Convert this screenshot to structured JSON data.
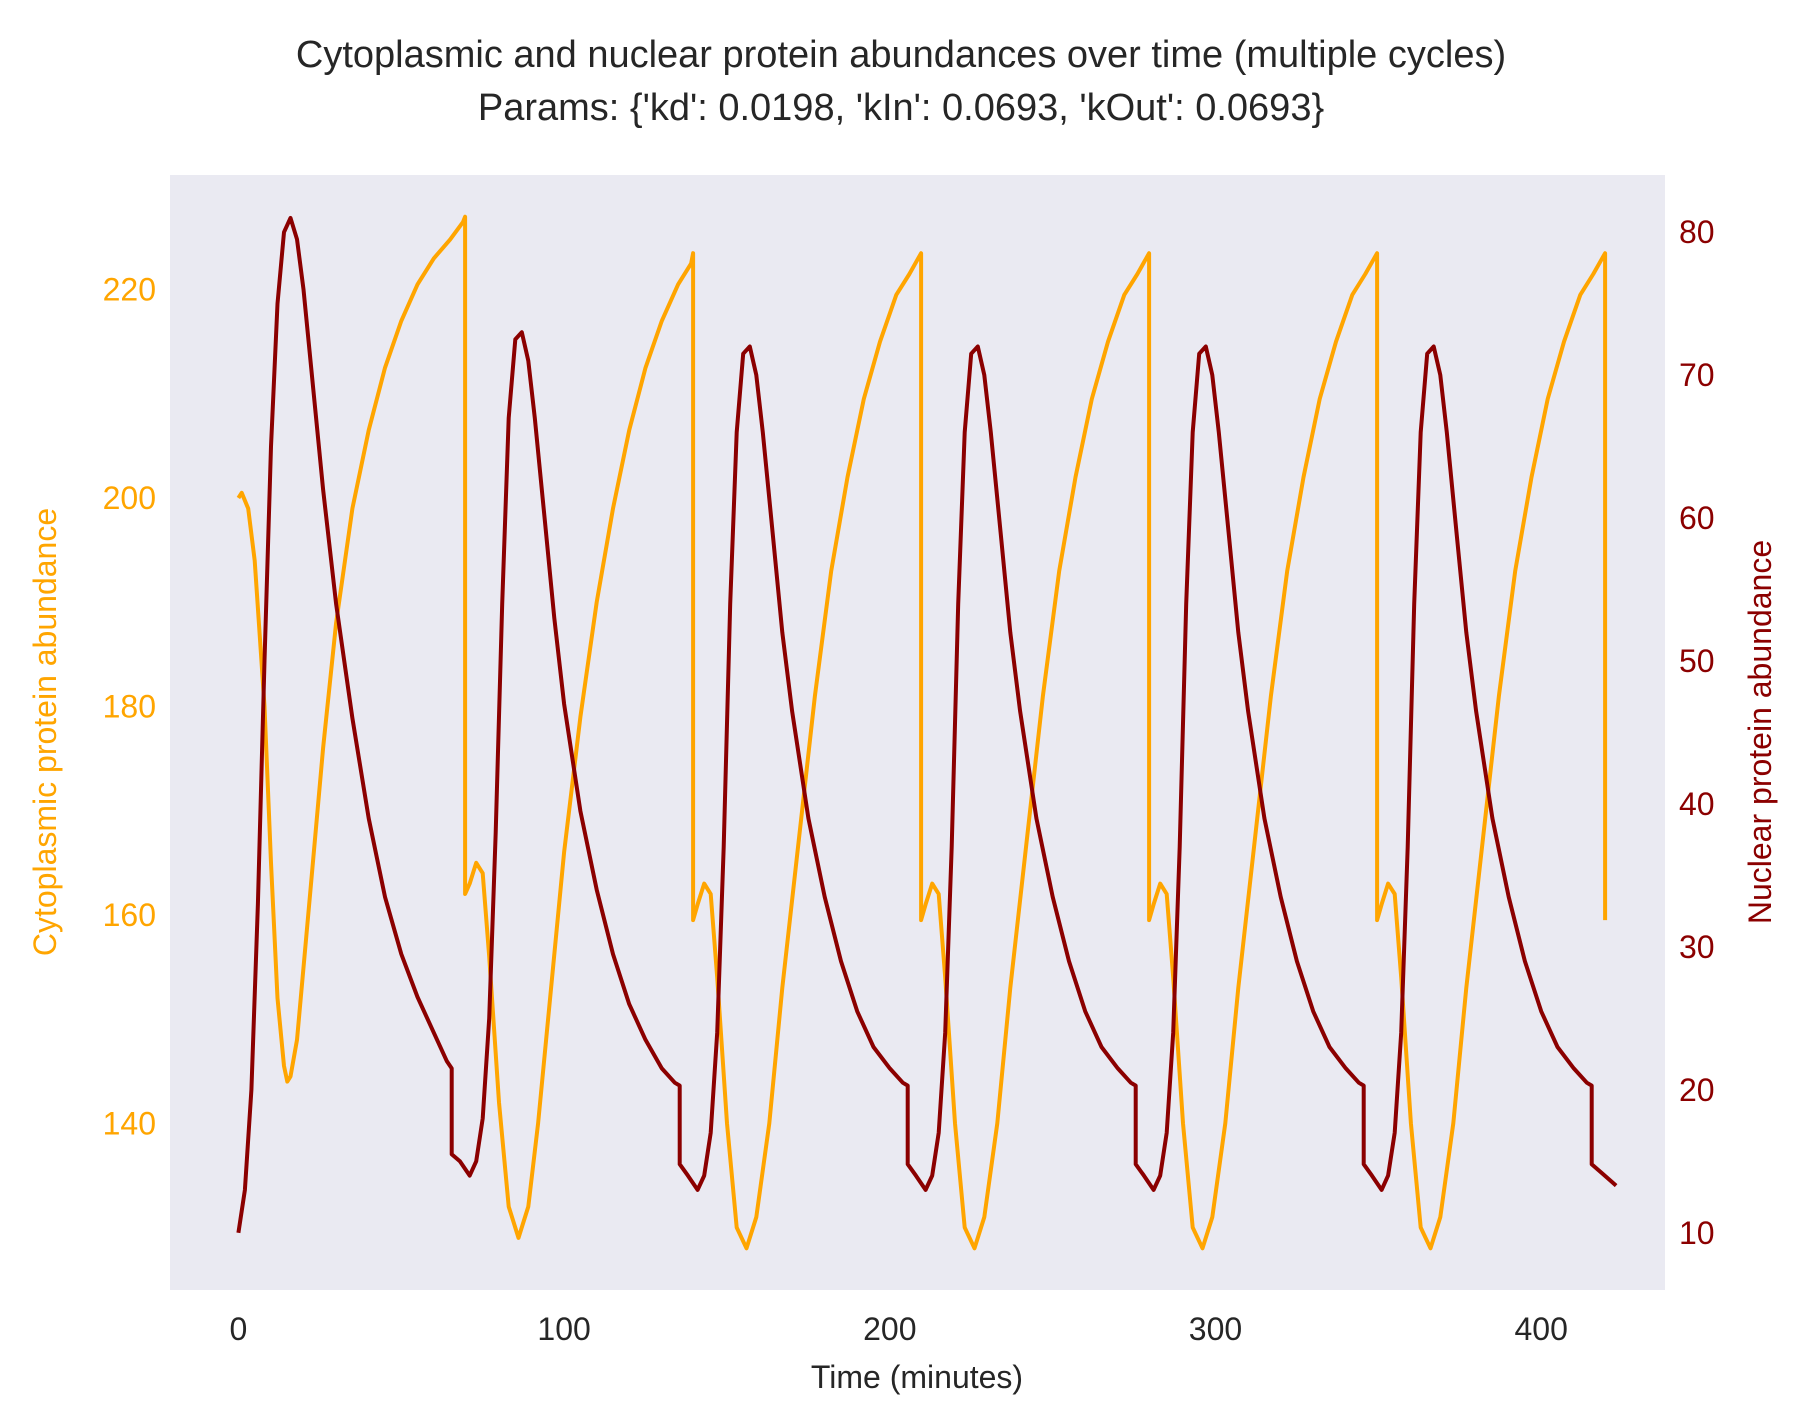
{
  "chart_data": {
    "type": "line",
    "title": "Cytoplasmic and nuclear protein abundances over time (multiple cycles)",
    "subtitle": "Params: {'kd': 0.0198, 'kIn': 0.0693, 'kOut': 0.0693}",
    "xlabel": "Time (minutes)",
    "ylabel_left": "Cytoplasmic protein abundance",
    "ylabel_right": "Nuclear protein abundance",
    "xlim": [
      -21,
      438
    ],
    "ylim_left": [
      124,
      231
    ],
    "ylim_right": [
      6,
      84
    ],
    "x_ticks": [
      0,
      100,
      200,
      300,
      400
    ],
    "y_ticks_left": [
      140,
      160,
      180,
      200,
      220
    ],
    "y_ticks_right": [
      10,
      20,
      30,
      40,
      50,
      60,
      70,
      80
    ],
    "grid": false,
    "background": "#eaeaf2",
    "colors": {
      "cytoplasmic": "#ffa500",
      "nuclear": "#8b0000",
      "text": "#262626"
    },
    "series": [
      {
        "name": "Cytoplasmic protein abundance",
        "axis": "left",
        "color": "#ffa500",
        "x": [
          0,
          1,
          3,
          5,
          8,
          10,
          12,
          14,
          15,
          16,
          18,
          22,
          26,
          30,
          35,
          40,
          45,
          50,
          55,
          60,
          65,
          69,
          69.6,
          69.6,
          71,
          73,
          75,
          77,
          80,
          83,
          86,
          89,
          92,
          96,
          100,
          105,
          110,
          115,
          120,
          125,
          130,
          135,
          139,
          139.6,
          139.6,
          141,
          143,
          145,
          147,
          150,
          153,
          156,
          159,
          163,
          167,
          172,
          177,
          182,
          187,
          192,
          197,
          202,
          206,
          209.6,
          209.6,
          211,
          213,
          215,
          217,
          220,
          223,
          226,
          229,
          233,
          237,
          242,
          247,
          252,
          257,
          262,
          267,
          272,
          276,
          279.6,
          279.6,
          281,
          283,
          285,
          287,
          290,
          293,
          296,
          299,
          303,
          307,
          312,
          317,
          322,
          327,
          332,
          337,
          342,
          346,
          349.6,
          349.6,
          351,
          353,
          355,
          357,
          360,
          363,
          366,
          369,
          373,
          377,
          382,
          387,
          392,
          397,
          402,
          407,
          412,
          416,
          419.6,
          419.6
        ],
        "values": [
          200,
          200.5,
          199,
          194,
          180,
          165,
          152,
          145.5,
          144,
          144.5,
          148,
          162,
          176,
          188,
          199,
          206.5,
          212.5,
          217,
          220.5,
          223,
          224.8,
          226.5,
          227,
          162,
          163,
          165,
          164,
          156,
          142,
          132,
          129,
          132,
          140,
          153,
          166,
          179,
          190,
          199,
          206.5,
          212.5,
          217,
          220.5,
          222.5,
          223.5,
          159.5,
          161,
          163,
          162,
          154,
          140,
          130,
          128,
          131,
          140,
          153,
          167,
          181,
          193,
          202,
          209.5,
          215,
          219.5,
          221.5,
          223.5,
          159.5,
          161,
          163,
          162,
          154,
          140,
          130,
          128,
          131,
          140,
          153,
          167,
          181,
          193,
          202,
          209.5,
          215,
          219.5,
          221.5,
          223.5,
          159.5,
          161,
          163,
          162,
          154,
          140,
          130,
          128,
          131,
          140,
          153,
          167,
          181,
          193,
          202,
          209.5,
          215,
          219.5,
          221.5,
          223.5,
          159.5,
          161,
          163,
          162,
          154,
          140,
          130,
          128,
          131,
          140,
          153,
          167,
          181,
          193,
          202,
          209.5,
          215,
          219.5,
          221.5,
          223.5,
          159.5
        ]
      },
      {
        "name": "Nuclear protein abundance",
        "axis": "right",
        "color": "#8b0000",
        "x": [
          0,
          2,
          4,
          6,
          8,
          10,
          12,
          14,
          16,
          18,
          20,
          23,
          26,
          30,
          35,
          40,
          45,
          50,
          55,
          60,
          64,
          65.5,
          65.5,
          68,
          71,
          73,
          75,
          77,
          79,
          81,
          83,
          85,
          87,
          89,
          91,
          94,
          97,
          100,
          105,
          110,
          115,
          120,
          125,
          130,
          134,
          135.5,
          135.5,
          138,
          141,
          143,
          145,
          147,
          149,
          151,
          153,
          155,
          157,
          159,
          161,
          164,
          167,
          170,
          175,
          180,
          185,
          190,
          195,
          200,
          204,
          205.5,
          205.5,
          208,
          211,
          213,
          215,
          217,
          219,
          221,
          223,
          225,
          227,
          229,
          231,
          234,
          237,
          240,
          245,
          250,
          255,
          260,
          265,
          270,
          274,
          275.5,
          275.5,
          278,
          281,
          283,
          285,
          287,
          289,
          291,
          293,
          295,
          297,
          299,
          301,
          304,
          307,
          310,
          315,
          320,
          325,
          330,
          335,
          340,
          344,
          345.5,
          345.5,
          348,
          351,
          353,
          355,
          357,
          359,
          361,
          363,
          365,
          367,
          369,
          371,
          374,
          377,
          380,
          385,
          390,
          395,
          400,
          405,
          410,
          414,
          415.5,
          415.5,
          418,
          421,
          423
        ],
        "values": [
          10,
          13,
          20,
          33,
          50,
          65,
          75,
          80,
          81,
          79.5,
          76,
          69,
          62,
          54,
          46,
          39,
          33.5,
          29.5,
          26.5,
          24,
          22,
          21.5,
          15.5,
          15,
          14,
          15,
          18,
          25,
          38,
          54,
          67,
          72.5,
          73,
          71,
          67,
          60,
          53,
          47,
          39.5,
          34,
          29.5,
          26,
          23.5,
          21.5,
          20.5,
          20.3,
          14.8,
          14,
          13,
          14,
          17,
          24,
          37,
          54,
          66,
          71.5,
          72,
          70,
          66,
          59,
          52,
          46.5,
          39,
          33.5,
          29,
          25.5,
          23,
          21.5,
          20.5,
          20.3,
          14.8,
          14,
          13,
          14,
          17,
          24,
          37,
          54,
          66,
          71.5,
          72,
          70,
          66,
          59,
          52,
          46.5,
          39,
          33.5,
          29,
          25.5,
          23,
          21.5,
          20.5,
          20.3,
          14.8,
          14,
          13,
          14,
          17,
          24,
          37,
          54,
          66,
          71.5,
          72,
          70,
          66,
          59,
          52,
          46.5,
          39,
          33.5,
          29,
          25.5,
          23,
          21.5,
          20.5,
          20.3,
          14.8,
          14,
          13,
          14,
          17,
          24,
          37,
          54,
          66,
          71.5,
          72,
          70,
          66,
          59,
          52,
          46.5,
          39,
          33.5,
          29,
          25.5,
          23,
          21.5,
          20.5,
          20.3,
          14.8,
          14.3,
          13.7,
          13.3
        ]
      }
    ]
  }
}
